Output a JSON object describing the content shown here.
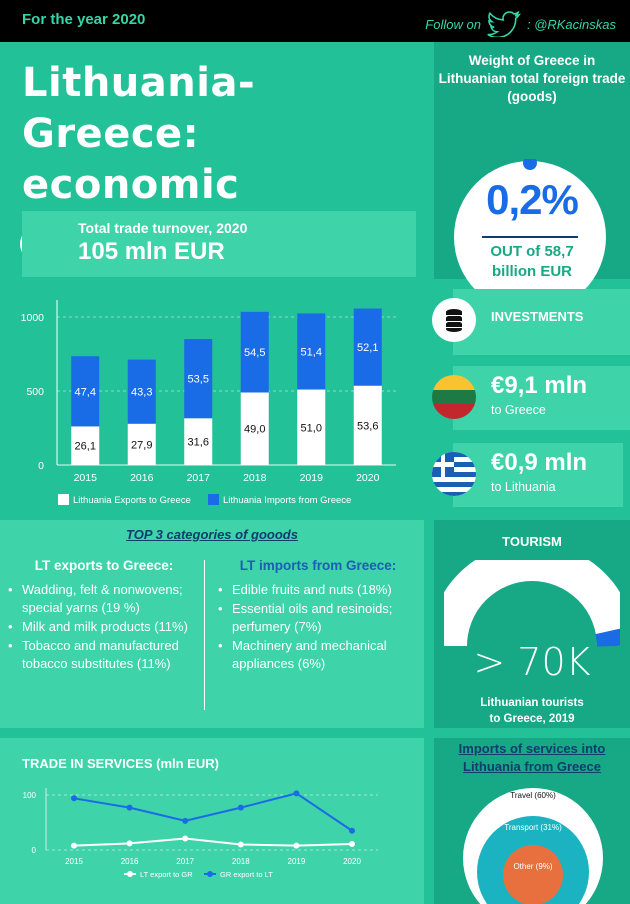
{
  "header": {
    "year_label": "For the year 2020",
    "follow_label": "Follow on",
    "handle": ": @RKacinskas"
  },
  "title": {
    "line1": "Lithuania-Greece:",
    "line2": "economic relations"
  },
  "weight": {
    "heading": "Weight of Greece in Lithuanian total foreign trade (goods)",
    "percent": "0,2%",
    "out_of": "OUT of 58,7",
    "unit": "billion EUR"
  },
  "turnover": {
    "label": "Total trade turnover, 2020",
    "value": "105 mln EUR"
  },
  "investments": {
    "label": "INVESTMENTS",
    "to_greece_value": "€9,1 mln",
    "to_greece_label": "to Greece",
    "to_lt_value": "€0,9 mln",
    "to_lt_label": "to Lithuania"
  },
  "categories": {
    "heading": "TOP 3 categories of goods",
    "exports_title": "LT exports to Greece:",
    "exports": [
      "Wadding, felt & nonwovens; special yarns (19 %)",
      "Milk and milk products (11%)",
      "Tobacco and manufactured tobacco substitutes (11%)"
    ],
    "imports_title": "LT imports from Greece:",
    "imports": [
      "Edible fruits and nuts (18%)",
      "Essential oils and resinoids; perfumery (7%)",
      "Machinery and mechanical appliances (6%)"
    ]
  },
  "tourism": {
    "heading": "TOURISM",
    "value": "> 70K",
    "caption_line1": "Lithuanian tourists",
    "caption_line2": "to Greece, 2019"
  },
  "services_title": "TRADE IN SERVICES (mln EUR)",
  "imports_services_title": "Imports of services into Lithuania from Greece",
  "colors": {
    "bg": "#23c198",
    "blue": "#1a6be6",
    "white": "#ffffff",
    "navy": "#103d6e",
    "orange": "#e8703e",
    "teal": "#1bb3c1"
  },
  "chart_data": [
    {
      "type": "bar",
      "stacked": true,
      "categories": [
        "2015",
        "2016",
        "2017",
        "2018",
        "2019",
        "2020"
      ],
      "series": [
        {
          "name": "Lithuania Exports to Greece",
          "values": [
            26.1,
            27.9,
            31.6,
            49.0,
            51.0,
            53.6
          ],
          "labels": [
            "26,1",
            "27,9",
            "31,6",
            "49,0",
            "51,0",
            "53,6"
          ],
          "color": "#ffffff"
        },
        {
          "name": "Lithuania Imports from Greece",
          "values": [
            47.4,
            43.3,
            53.5,
            54.5,
            51.4,
            52.1
          ],
          "labels": [
            "47,4",
            "43,3",
            "53,5",
            "54,5",
            "51,4",
            "52,1"
          ],
          "color": "#1a6be6"
        }
      ],
      "yticks": [
        0,
        500,
        1000
      ],
      "ytick_labels": [
        "0",
        "500",
        "1000"
      ],
      "ylim": [
        0,
        1000
      ],
      "grid": true,
      "legend": "bottom"
    },
    {
      "type": "line",
      "x": [
        "2015",
        "2016",
        "2017",
        "2018",
        "2019",
        "2020"
      ],
      "series": [
        {
          "name": "LT export to GR",
          "values": [
            8,
            12,
            21,
            10,
            8,
            11
          ],
          "color": "#ffffff"
        },
        {
          "name": "GR export to LT",
          "values": [
            94,
            77,
            53,
            77,
            103,
            35
          ],
          "color": "#1a6be6"
        }
      ],
      "yticks": [
        0,
        100
      ],
      "ylim": [
        0,
        110
      ],
      "grid": true,
      "legend": "bottom"
    },
    {
      "type": "pie",
      "style": "nested-circles",
      "labels": [
        "Travel (60%)",
        "Transport (31%)",
        "Other (9%)"
      ],
      "values": [
        60,
        31,
        9
      ]
    }
  ]
}
